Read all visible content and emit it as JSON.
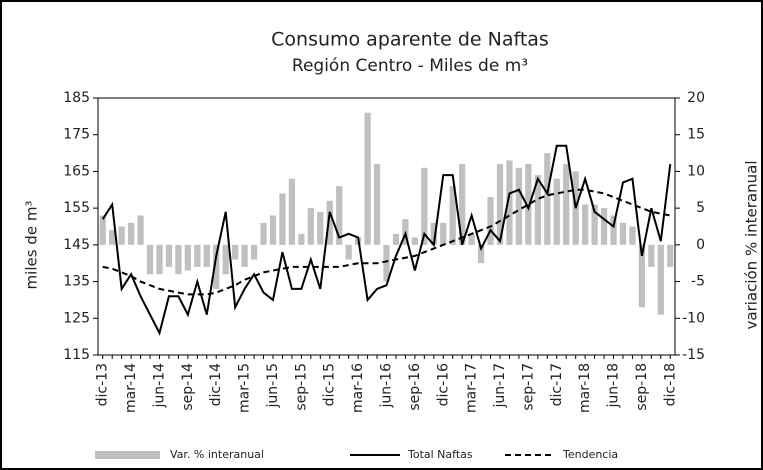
{
  "chart_data": {
    "type": "combo",
    "title": "Consumo aparente de Naftas",
    "subtitle": "Región Centro - Miles de m³",
    "ylabel": "miles de m³",
    "y2label": "variación % interanual",
    "categories": [
      "dic-13",
      null,
      null,
      "mar-14",
      null,
      null,
      "jun-14",
      null,
      null,
      "sep-14",
      null,
      null,
      "dic-14",
      null,
      null,
      "mar-15",
      null,
      null,
      "jun-15",
      null,
      null,
      "sep-15",
      null,
      null,
      "dic-15",
      null,
      null,
      "mar-16",
      null,
      null,
      "jun-16",
      null,
      null,
      "sep-16",
      null,
      null,
      "dic-16",
      null,
      null,
      "mar-17",
      null,
      null,
      "jun-17",
      null,
      null,
      "sep-17",
      null,
      null,
      "dic-17",
      null,
      null,
      "mar-18",
      null,
      null,
      "jun-18",
      null,
      null,
      "sep-18",
      null,
      null,
      "dic-18"
    ],
    "ylim": [
      115,
      185
    ],
    "yticks": [
      115,
      125,
      135,
      145,
      155,
      165,
      175,
      185
    ],
    "y2lim": [
      -15,
      20
    ],
    "y2ticks": [
      -15,
      -10,
      -5,
      0,
      5,
      10,
      15,
      20
    ],
    "series": [
      {
        "name": "Var. % interanual",
        "type": "bar",
        "axis": "y2",
        "color": "#c0c0c0",
        "values": [
          4,
          2,
          2.5,
          3,
          4,
          -4,
          -4,
          -3,
          -4,
          -3.5,
          -3,
          -3,
          -6,
          -4,
          -2,
          -3,
          -2,
          3,
          4,
          7,
          9,
          1.5,
          5,
          4.5,
          6,
          8,
          -2,
          1,
          18,
          11,
          -5,
          1.5,
          3.5,
          1,
          10.5,
          3,
          3,
          8,
          11,
          1.5,
          -2.5,
          6.5,
          11,
          11.5,
          10.5,
          11,
          9.5,
          12.5,
          9,
          11,
          10,
          5.5,
          5.5,
          5,
          4,
          3,
          2.5,
          -8.5,
          -3,
          -9.5,
          -3
        ]
      },
      {
        "name": "Total Naftas",
        "type": "line",
        "color": "#000000",
        "linestyle": "solid",
        "values": [
          152,
          156,
          133,
          137,
          131,
          126,
          121,
          131,
          131,
          126,
          135,
          126,
          142,
          154,
          128,
          133,
          137,
          132,
          130,
          143,
          133,
          133,
          141,
          133,
          154,
          147,
          148,
          147,
          130,
          133,
          134,
          142,
          148,
          138,
          148,
          145,
          164,
          164,
          145,
          153,
          144,
          149,
          146,
          159,
          160,
          155,
          163,
          159,
          172,
          172,
          155,
          163,
          154,
          152,
          150,
          162,
          163,
          142,
          155,
          146,
          167
        ]
      },
      {
        "name": "Tendencia",
        "type": "line",
        "color": "#000000",
        "linestyle": "dashed",
        "values": [
          139,
          138.5,
          137.5,
          136.5,
          135,
          134,
          133,
          132.5,
          132,
          131.5,
          131.5,
          131.5,
          132,
          133,
          134,
          135.5,
          136.5,
          137.5,
          138,
          138.5,
          139,
          139,
          139,
          139,
          139,
          139,
          139.5,
          140,
          140,
          140,
          140.5,
          141,
          141.5,
          142,
          143,
          144,
          145,
          146,
          147,
          148,
          149,
          150,
          151.5,
          153,
          154.5,
          156,
          157.5,
          158.5,
          159,
          159.5,
          160,
          160,
          159.5,
          159,
          158,
          157,
          156,
          155,
          154,
          153.5,
          153
        ]
      }
    ]
  }
}
